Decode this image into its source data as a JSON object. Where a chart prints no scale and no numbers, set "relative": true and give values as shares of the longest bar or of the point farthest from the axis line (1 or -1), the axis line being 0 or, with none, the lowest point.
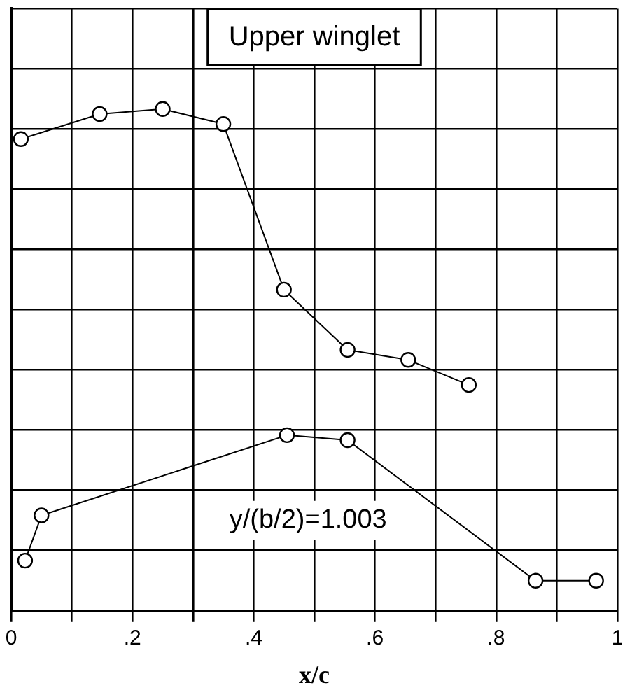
{
  "chart_data": {
    "type": "line",
    "title": "Upper winglet",
    "xlabel": "x/c",
    "relative": true,
    "grid": true,
    "tick_labels": "x",
    "marker": "circle",
    "line_style": "solid",
    "legend": false,
    "annotations": [
      "y/(b/2)=1.003"
    ],
    "xlim": [
      0,
      1
    ],
    "xticks": [
      0,
      {
        "value": 0.1,
        "label": null
      },
      {
        "value": 0.2,
        "label": ".2"
      },
      {
        "value": 0.3,
        "label": null
      },
      {
        "value": 0.4,
        "label": ".4"
      },
      {
        "value": 0.5,
        "label": null
      },
      {
        "value": 0.6,
        "label": ".6"
      },
      {
        "value": 0.7,
        "label": null
      },
      {
        "value": 0.8,
        "label": ".8"
      },
      {
        "value": 0.9,
        "label": null
      },
      {
        "value": 1,
        "label": "1"
      }
    ],
    "series": [
      {
        "color": "#000000",
        "x": [
          0.016,
          0.146,
          0.25,
          0.35,
          0.45,
          0.555,
          0.655,
          0.755
        ],
        "values": [
          0.94,
          0.99,
          1,
          0.97,
          0.64,
          0.52,
          0.5,
          0.45
        ]
      },
      {
        "color": "#000000",
        "x": [
          0.023,
          0.05,
          0.455,
          0.555,
          0.865,
          0.965
        ],
        "values": [
          0.1,
          0.19,
          0.35,
          0.34,
          0.06,
          0.06
        ]
      }
    ]
  }
}
